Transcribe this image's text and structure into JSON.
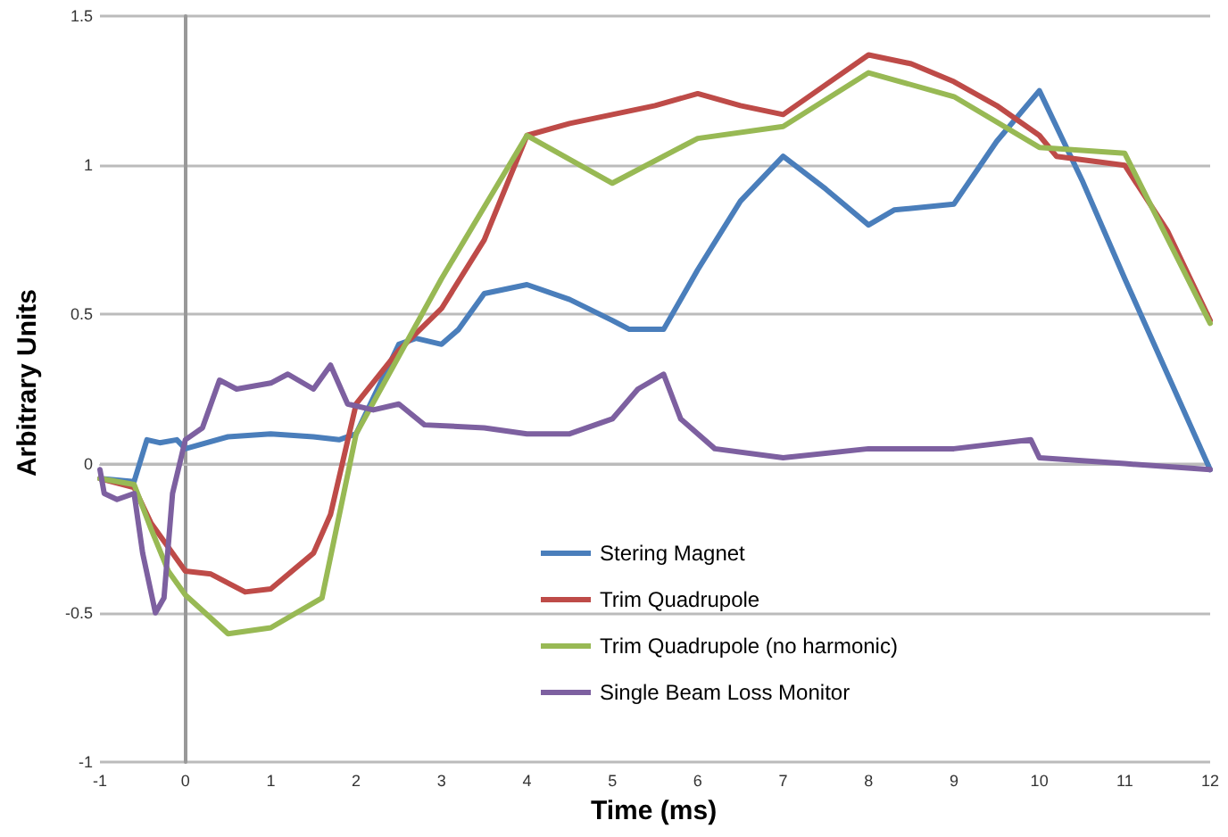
{
  "chart_data": {
    "type": "line",
    "xlabel": "Time (ms)",
    "ylabel": "Arbitrary Units",
    "xlim": [
      -1,
      12
    ],
    "ylim": [
      -1,
      1.5
    ],
    "xticks": [
      -1,
      0,
      1,
      2,
      3,
      4,
      5,
      6,
      7,
      8,
      9,
      10,
      11,
      12
    ],
    "yticks": [
      -1,
      -0.5,
      0,
      0.5,
      1,
      1.5
    ],
    "grid": "y",
    "legend": "bottom",
    "marker": "none",
    "line_style": "solid",
    "series": [
      {
        "name": "Stering Magnet",
        "color": "#4a7ebb",
        "x": [
          -1,
          -0.6,
          -0.45,
          -0.3,
          -0.1,
          0,
          0.5,
          1,
          1.5,
          1.8,
          2,
          2.2,
          2.5,
          2.7,
          3,
          3.2,
          3.5,
          4,
          4.5,
          5,
          5.2,
          5.6,
          6,
          6.5,
          7,
          7.5,
          8,
          8.3,
          9,
          9.5,
          10,
          10.5,
          11,
          11.5,
          12
        ],
        "values": [
          -0.05,
          -0.06,
          0.08,
          0.07,
          0.08,
          0.05,
          0.09,
          0.1,
          0.09,
          0.08,
          0.1,
          0.22,
          0.4,
          0.42,
          0.4,
          0.45,
          0.57,
          0.6,
          0.55,
          0.48,
          0.45,
          0.45,
          0.65,
          0.88,
          1.03,
          0.92,
          0.8,
          0.85,
          0.87,
          1.08,
          1.25,
          0.95,
          0.62,
          0.3,
          -0.02
        ]
      },
      {
        "name": "Trim Quadrupole",
        "color": "#be4b48",
        "x": [
          -1,
          -0.6,
          -0.4,
          -0.2,
          0,
          0.3,
          0.7,
          1,
          1.5,
          1.7,
          2,
          2.5,
          3,
          3.5,
          4,
          4.5,
          5,
          5.5,
          6,
          6.5,
          7,
          7.5,
          8,
          8.5,
          9,
          9.5,
          10,
          10.2,
          11,
          11.5,
          12
        ],
        "values": [
          -0.05,
          -0.08,
          -0.2,
          -0.28,
          -0.36,
          -0.37,
          -0.43,
          -0.42,
          -0.3,
          -0.17,
          0.2,
          0.38,
          0.52,
          0.75,
          1.1,
          1.14,
          1.17,
          1.2,
          1.24,
          1.2,
          1.17,
          1.27,
          1.37,
          1.34,
          1.28,
          1.2,
          1.1,
          1.03,
          1,
          0.78,
          0.48
        ]
      },
      {
        "name": "Trim Quadrupole (no harmonic)",
        "color": "#98b954",
        "x": [
          -1,
          -0.6,
          -0.4,
          -0.2,
          0,
          0.5,
          1,
          1.6,
          2,
          3,
          4,
          5,
          6,
          7,
          8,
          9,
          10,
          11,
          12
        ],
        "values": [
          -0.05,
          -0.07,
          -0.22,
          -0.36,
          -0.44,
          -0.57,
          -0.55,
          -0.45,
          0.1,
          0.62,
          1.1,
          0.94,
          1.09,
          1.13,
          1.31,
          1.23,
          1.06,
          1.04,
          0.47
        ]
      },
      {
        "name": "Single Beam Loss Monitor",
        "color": "#7d60a0",
        "x": [
          -1,
          -0.95,
          -0.8,
          -0.6,
          -0.5,
          -0.35,
          -0.25,
          -0.15,
          0,
          0.2,
          0.4,
          0.6,
          1,
          1.2,
          1.5,
          1.7,
          1.9,
          2.2,
          2.5,
          2.8,
          3.5,
          4,
          4.5,
          5,
          5.3,
          5.6,
          5.8,
          6.2,
          7,
          8,
          9,
          9.9,
          10,
          11,
          12
        ],
        "values": [
          -0.02,
          -0.1,
          -0.12,
          -0.1,
          -0.3,
          -0.5,
          -0.45,
          -0.1,
          0.08,
          0.12,
          0.28,
          0.25,
          0.27,
          0.3,
          0.25,
          0.33,
          0.2,
          0.18,
          0.2,
          0.13,
          0.12,
          0.1,
          0.1,
          0.15,
          0.25,
          0.3,
          0.15,
          0.05,
          0.02,
          0.05,
          0.05,
          0.08,
          0.02,
          0,
          -0.02
        ]
      }
    ]
  }
}
